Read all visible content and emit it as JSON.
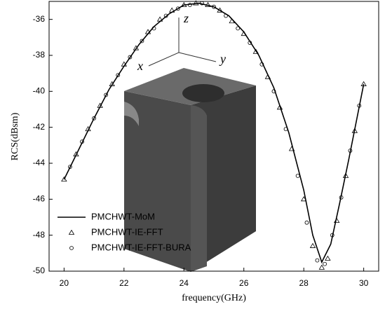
{
  "chart_data": {
    "type": "line",
    "x_label": "frequency(GHz)",
    "y_label": "RCS(dBsm)",
    "annotations": [
      "z",
      "x",
      "y"
    ],
    "xlim": [
      19.5,
      30.5
    ],
    "xticks": [
      20,
      22,
      24,
      26,
      28,
      30
    ],
    "ylim": [
      -50,
      -35
    ],
    "yticks": [
      -50,
      -48,
      -46,
      -44,
      -42,
      -40,
      -38,
      -36
    ],
    "legend": "lower left",
    "series": [
      {
        "name": "PMCHWT-MoM",
        "color": "#000000",
        "marker": "line",
        "x": [
          20,
          20.5,
          21,
          21.5,
          22,
          22.5,
          23,
          23.5,
          24,
          24.5,
          25,
          25.5,
          26,
          26.5,
          27,
          27.5,
          28,
          28.3,
          28.6,
          28.9,
          29.2,
          29.5,
          30
        ],
        "values": [
          -44.9,
          -43.2,
          -41.5,
          -39.9,
          -38.6,
          -37.4,
          -36.4,
          -35.7,
          -35.2,
          -35.1,
          -35.3,
          -35.8,
          -36.7,
          -38.0,
          -39.8,
          -42.3,
          -45.5,
          -48.0,
          -49.5,
          -48.5,
          -46.2,
          -43.8,
          -39.6
        ]
      },
      {
        "name": "PMCHWT-IE-FFT",
        "color": "#000000",
        "marker": "triangle",
        "x": [
          20,
          20.4,
          20.8,
          21.2,
          21.6,
          22,
          22.4,
          22.8,
          23.2,
          23.6,
          24,
          24.4,
          24.8,
          25.2,
          25.6,
          26,
          26.4,
          26.8,
          27.2,
          27.6,
          28,
          28.3,
          28.6,
          28.8,
          29.1,
          29.4,
          29.7,
          30
        ],
        "values": [
          -44.9,
          -43.5,
          -42.1,
          -40.8,
          -39.6,
          -38.5,
          -37.6,
          -36.7,
          -36.0,
          -35.5,
          -35.2,
          -35.1,
          -35.2,
          -35.5,
          -36.1,
          -36.8,
          -37.8,
          -39.2,
          -40.9,
          -43.2,
          -46.0,
          -48.6,
          -49.8,
          -49.3,
          -47.2,
          -44.7,
          -42.2,
          -39.6
        ]
      },
      {
        "name": "PMCHWT-IE-FFT-BURA",
        "color": "#000000",
        "marker": "circle",
        "x": [
          20.2,
          20.6,
          21.0,
          21.4,
          21.8,
          22.2,
          22.6,
          23.0,
          23.4,
          23.8,
          24.2,
          24.6,
          25.0,
          25.4,
          25.8,
          26.2,
          26.6,
          27.0,
          27.4,
          27.8,
          28.1,
          28.45,
          28.7,
          28.95,
          29.25,
          29.55,
          29.85
        ],
        "values": [
          -44.2,
          -42.8,
          -41.5,
          -40.2,
          -39.1,
          -38.1,
          -37.2,
          -36.5,
          -35.8,
          -35.4,
          -35.2,
          -35.1,
          -35.3,
          -35.8,
          -36.5,
          -37.3,
          -38.5,
          -40.0,
          -42.1,
          -44.7,
          -47.3,
          -49.4,
          -49.6,
          -48.0,
          -45.9,
          -43.3,
          -40.8
        ]
      }
    ]
  }
}
